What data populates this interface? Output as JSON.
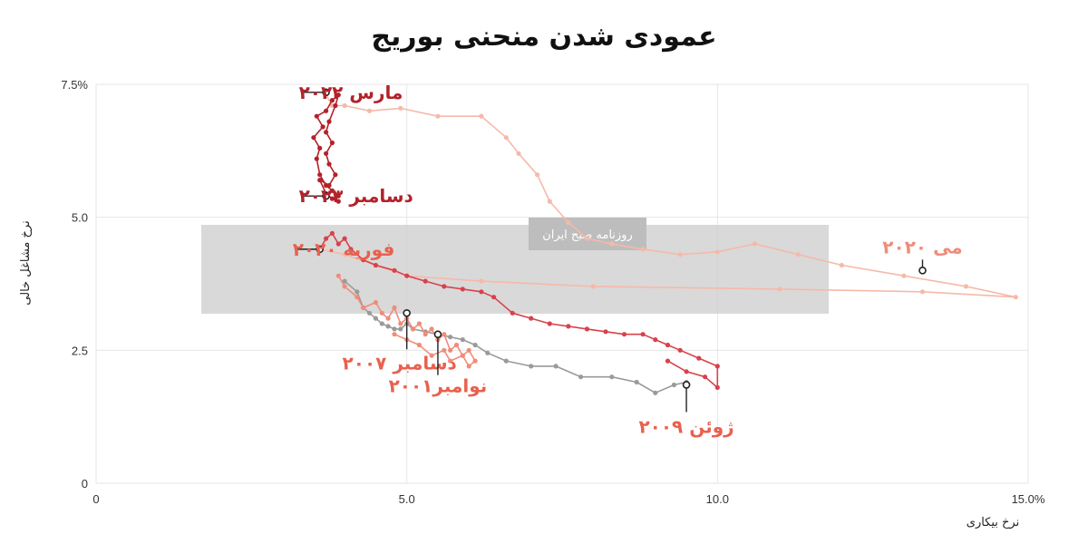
{
  "chart_data": {
    "type": "line",
    "title": "عمودی شدن منحنی بوریج",
    "xlabel": "نرخ بیکاری",
    "ylabel": "نرخ مشاغل خالی",
    "xlim": [
      0,
      15
    ],
    "ylim": [
      0,
      7.5
    ],
    "x_ticks": [
      "0",
      "5.0",
      "10.0",
      "15.0%"
    ],
    "y_ticks": [
      "0",
      "2.5",
      "5.0",
      "7.5%"
    ],
    "grid": true,
    "watermark": "روزنامه صبح ایران",
    "series": [
      {
        "color": "#9a9a9a",
        "style": "2000s",
        "points": [
          [
            4.0,
            3.8
          ],
          [
            4.2,
            3.6
          ],
          [
            4.3,
            3.3
          ],
          [
            4.4,
            3.2
          ],
          [
            4.5,
            3.1
          ],
          [
            4.6,
            3.0
          ],
          [
            4.7,
            2.95
          ],
          [
            4.8,
            2.9
          ],
          [
            4.9,
            2.9
          ],
          [
            5.0,
            3.0
          ],
          [
            5.1,
            2.9
          ],
          [
            5.3,
            2.85
          ],
          [
            5.5,
            2.8
          ],
          [
            5.7,
            2.75
          ],
          [
            5.9,
            2.7
          ],
          [
            6.1,
            2.6
          ],
          [
            6.3,
            2.45
          ],
          [
            6.6,
            2.3
          ],
          [
            7.0,
            2.2
          ],
          [
            7.4,
            2.2
          ],
          [
            7.8,
            2.0
          ],
          [
            8.3,
            2.0
          ],
          [
            8.7,
            1.9
          ],
          [
            9.0,
            1.7
          ],
          [
            9.3,
            1.85
          ],
          [
            9.5,
            1.9
          ]
        ]
      },
      {
        "color": "#f08c7a",
        "style": "2001-2007",
        "points": [
          [
            3.9,
            3.9
          ],
          [
            4.0,
            3.7
          ],
          [
            4.2,
            3.5
          ],
          [
            4.3,
            3.3
          ],
          [
            4.5,
            3.4
          ],
          [
            4.6,
            3.2
          ],
          [
            4.7,
            3.1
          ],
          [
            4.8,
            3.3
          ],
          [
            4.9,
            3.0
          ],
          [
            5.0,
            3.1
          ],
          [
            5.1,
            2.9
          ],
          [
            5.2,
            3.0
          ],
          [
            5.3,
            2.8
          ],
          [
            5.4,
            2.9
          ],
          [
            5.5,
            2.7
          ],
          [
            5.6,
            2.8
          ],
          [
            5.7,
            2.5
          ],
          [
            5.8,
            2.6
          ],
          [
            5.9,
            2.4
          ],
          [
            6.0,
            2.5
          ],
          [
            6.1,
            2.3
          ],
          [
            6.0,
            2.2
          ],
          [
            5.9,
            2.4
          ],
          [
            5.7,
            2.3
          ],
          [
            5.6,
            2.5
          ],
          [
            5.4,
            2.4
          ],
          [
            5.2,
            2.6
          ],
          [
            5.0,
            2.7
          ],
          [
            4.8,
            2.8
          ]
        ]
      },
      {
        "color": "#f6b9a9",
        "style": "2020",
        "points": [
          [
            3.7,
            7.3
          ],
          [
            3.8,
            7.1
          ],
          [
            4.0,
            7.1
          ],
          [
            4.4,
            7.0
          ],
          [
            4.9,
            7.05
          ],
          [
            5.5,
            6.9
          ],
          [
            6.2,
            6.9
          ],
          [
            6.6,
            6.5
          ],
          [
            6.8,
            6.2
          ],
          [
            7.1,
            5.8
          ],
          [
            7.3,
            5.3
          ],
          [
            7.6,
            4.9
          ],
          [
            7.9,
            4.6
          ],
          [
            8.3,
            4.5
          ],
          [
            8.8,
            4.4
          ],
          [
            9.4,
            4.3
          ],
          [
            10.0,
            4.35
          ],
          [
            10.6,
            4.5
          ],
          [
            11.3,
            4.3
          ],
          [
            12.0,
            4.1
          ],
          [
            13.0,
            3.9
          ],
          [
            14.0,
            3.7
          ],
          [
            14.8,
            3.5
          ],
          [
            13.3,
            3.6
          ],
          [
            11.0,
            3.65
          ],
          [
            8.0,
            3.7
          ],
          [
            6.2,
            3.8
          ],
          [
            5.0,
            3.9
          ],
          [
            4.5,
            4.1
          ],
          [
            4.0,
            4.3
          ],
          [
            3.6,
            4.4
          ]
        ]
      },
      {
        "color": "#d9414b",
        "style": "2020-2023",
        "points": [
          [
            3.6,
            4.4
          ],
          [
            3.7,
            4.6
          ],
          [
            3.8,
            4.7
          ],
          [
            3.9,
            4.5
          ],
          [
            4.0,
            4.6
          ],
          [
            4.1,
            4.4
          ],
          [
            4.3,
            4.2
          ],
          [
            4.5,
            4.1
          ],
          [
            4.8,
            4.0
          ],
          [
            5.0,
            3.9
          ],
          [
            5.3,
            3.8
          ],
          [
            5.6,
            3.7
          ],
          [
            5.9,
            3.65
          ],
          [
            6.2,
            3.6
          ],
          [
            6.4,
            3.5
          ],
          [
            6.7,
            3.2
          ],
          [
            7.0,
            3.1
          ],
          [
            7.3,
            3.0
          ],
          [
            7.6,
            2.95
          ],
          [
            7.9,
            2.9
          ],
          [
            8.2,
            2.85
          ],
          [
            8.5,
            2.8
          ],
          [
            8.8,
            2.8
          ],
          [
            9.0,
            2.7
          ],
          [
            9.2,
            2.6
          ],
          [
            9.4,
            2.5
          ],
          [
            9.7,
            2.35
          ],
          [
            10.0,
            2.2
          ],
          [
            10.0,
            1.8
          ],
          [
            9.8,
            2.0
          ],
          [
            9.5,
            2.1
          ],
          [
            9.2,
            2.3
          ]
        ]
      },
      {
        "color": "#b3222a",
        "style": "2022-2023",
        "points": [
          [
            3.9,
            5.4
          ],
          [
            3.8,
            5.5
          ],
          [
            3.7,
            5.6
          ],
          [
            3.6,
            5.8
          ],
          [
            3.55,
            6.1
          ],
          [
            3.6,
            6.3
          ],
          [
            3.5,
            6.5
          ],
          [
            3.65,
            6.7
          ],
          [
            3.55,
            6.9
          ],
          [
            3.7,
            7.0
          ],
          [
            3.8,
            7.2
          ],
          [
            3.9,
            7.3
          ],
          [
            3.85,
            7.1
          ],
          [
            3.75,
            6.8
          ],
          [
            3.7,
            6.6
          ],
          [
            3.8,
            6.4
          ],
          [
            3.7,
            6.2
          ],
          [
            3.75,
            6.0
          ],
          [
            3.85,
            5.8
          ],
          [
            3.75,
            5.6
          ],
          [
            3.6,
            5.7
          ],
          [
            3.7,
            5.45
          ],
          [
            3.8,
            5.35
          ],
          [
            3.9,
            5.3
          ]
        ]
      }
    ],
    "annotations": [
      {
        "text": "مارس ۲۰۲۲",
        "x": 3.7,
        "y": 7.35,
        "color": "#b3222a"
      },
      {
        "text": "دسامبر ۲۰۲۳",
        "x": 3.7,
        "y": 5.4,
        "color": "#b3222a"
      },
      {
        "text": "فوریه ۲۰۲۰",
        "x": 3.6,
        "y": 4.4,
        "color": "#e8614e"
      },
      {
        "text": "می ۲۰۲۰",
        "x": 13.3,
        "y": 4.0,
        "color": "#f08c7a"
      },
      {
        "text": "دسامبر ۲۰۰۷",
        "x": 5.0,
        "y": 3.2,
        "color": "#e8614e"
      },
      {
        "text": "نوامبر۲۰۰۱",
        "x": 5.5,
        "y": 2.8,
        "color": "#e8614e"
      },
      {
        "text": "ژوئن ۲۰۰۹",
        "x": 9.5,
        "y": 1.85,
        "color": "#e8614e"
      }
    ]
  }
}
